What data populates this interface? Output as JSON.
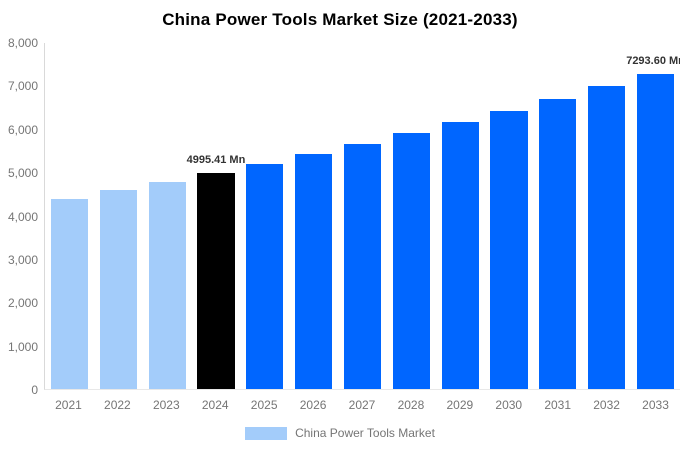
{
  "title": "China Power Tools Market Size (2021-2033)",
  "legend": {
    "label": "China Power Tools Market",
    "swatch_color": "#A3CCFA"
  },
  "colors": {
    "historical_bar": "#A3CCFA",
    "base_year_bar": "#000000",
    "forecast_bar": "#0066FF",
    "axis_text": "#757575",
    "data_label_text": "#333333",
    "axis_line": "#D9D9D9"
  },
  "chart_data": {
    "type": "bar",
    "title": "China Power Tools Market Size (2021-2033)",
    "unit": "Mn",
    "categories": [
      "2021",
      "2022",
      "2023",
      "2024",
      "2025",
      "2026",
      "2027",
      "2028",
      "2029",
      "2030",
      "2031",
      "2032",
      "2033"
    ],
    "values": [
      4400,
      4590,
      4790,
      4995.41,
      5210,
      5435,
      5665,
      5910,
      6165,
      6430,
      6705,
      6995,
      7293.6
    ],
    "series_name": "China Power Tools Market",
    "bar_colors": [
      "#A3CCFA",
      "#A3CCFA",
      "#A3CCFA",
      "#000000",
      "#0066FF",
      "#0066FF",
      "#0066FF",
      "#0066FF",
      "#0066FF",
      "#0066FF",
      "#0066FF",
      "#0066FF",
      "#0066FF"
    ],
    "data_labels": [
      {
        "index": 3,
        "text": "4995.41 Mn"
      },
      {
        "index": 12,
        "text": "7293.60 Mn"
      }
    ],
    "xlabel": "",
    "ylabel": "",
    "ylim": [
      0,
      8000
    ],
    "ytick_step": 1000,
    "ytick_labels": [
      "8,000",
      "7,000",
      "6,000",
      "5,000",
      "4,000",
      "3,000",
      "2,000",
      "1,000",
      "0"
    ],
    "grid": false,
    "legend_position": "bottom"
  }
}
